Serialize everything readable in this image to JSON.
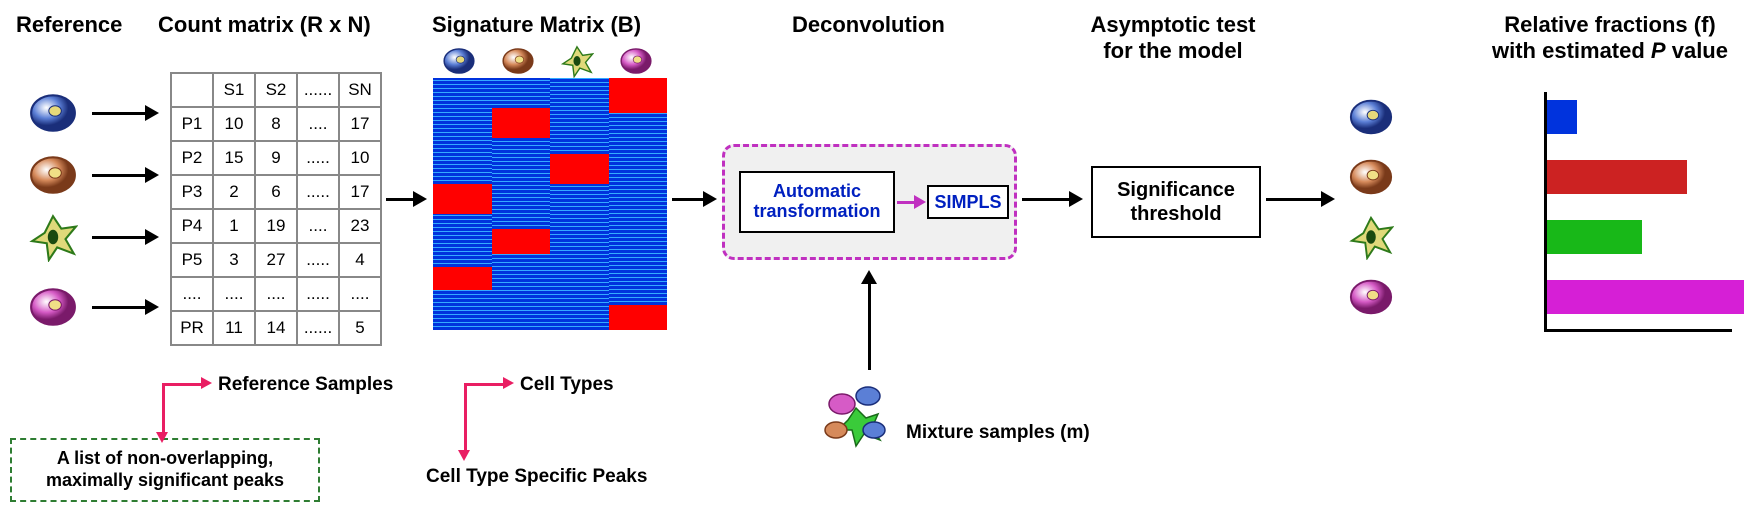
{
  "headings": {
    "reference": "Reference",
    "count_matrix": "Count matrix (R x N)",
    "signature_matrix": "Signature Matrix (B)",
    "deconvolution": "Deconvolution",
    "asymptotic": "Asymptotic test\nfor the model",
    "relative": "Relative fractions (f)\nwith estimated P value"
  },
  "heading_fontsize": 22,
  "cell_colors": {
    "blue": {
      "fill": "#5b7fd6",
      "stroke": "#1a2e7a",
      "nucleus": "#e6d97a"
    },
    "orange": {
      "fill": "#d68a5b",
      "stroke": "#7a3a1a",
      "nucleus": "#f0e086"
    },
    "green": {
      "fill": "#e0d97a",
      "stroke": "#2e7a1a",
      "nucleus": "#1a4a10",
      "star": true
    },
    "magenta": {
      "fill": "#d65bc6",
      "stroke": "#7a1a6a",
      "nucleus": "#f0e086"
    }
  },
  "count_table": {
    "header": [
      "",
      "S1",
      "S2",
      "......",
      "SN"
    ],
    "rows": [
      [
        "P1",
        "10",
        "8",
        "....",
        "17"
      ],
      [
        "P2",
        "15",
        "9",
        ".....",
        "10"
      ],
      [
        "P3",
        "2",
        "6",
        ".....",
        "17"
      ],
      [
        "P4",
        "1",
        "19",
        "....",
        "23"
      ],
      [
        "P5",
        "3",
        "27",
        ".....",
        "4"
      ],
      [
        "....",
        "....",
        "....",
        ".....",
        "...."
      ],
      [
        "PR",
        "11",
        "14",
        "......",
        "5"
      ]
    ]
  },
  "heatmap": {
    "base": "#0033dd",
    "highlight": "#ff0000",
    "accent": "#33aaff",
    "cols": 4,
    "red_blocks": [
      [
        {
          "start": 0.42,
          "end": 0.54
        },
        {
          "start": 0.75,
          "end": 0.84
        }
      ],
      [
        {
          "start": 0.12,
          "end": 0.24
        },
        {
          "start": 0.6,
          "end": 0.7
        }
      ],
      [
        {
          "start": 0.3,
          "end": 0.42
        }
      ],
      [
        {
          "start": 0.0,
          "end": 0.14
        },
        {
          "start": 0.9,
          "end": 1.0
        }
      ]
    ]
  },
  "deconv": {
    "auto_label": "Automatic\ntransformation",
    "auto_color": "#0020c0",
    "simpls_label": "SIMPLS",
    "simpls_color": "#0020c0",
    "arrow_color": "#c030c0"
  },
  "sig_label": "Significance\nthreshold",
  "peaks_label": "A list of non-overlapping,\nmaximally significant peaks",
  "mixture_label": "Mixture samples (m)",
  "ref_samples_label": "Reference Samples",
  "cell_types_label": "Cell Types",
  "cell_peaks_label": "Cell Type Specific Peaks",
  "bar_chart": {
    "cells": [
      "blue",
      "orange",
      "green",
      "magenta"
    ],
    "values": [
      30,
      140,
      95,
      210
    ],
    "colors": [
      "#0033dd",
      "#cc2222",
      "#18b818",
      "#d61fd6"
    ]
  }
}
